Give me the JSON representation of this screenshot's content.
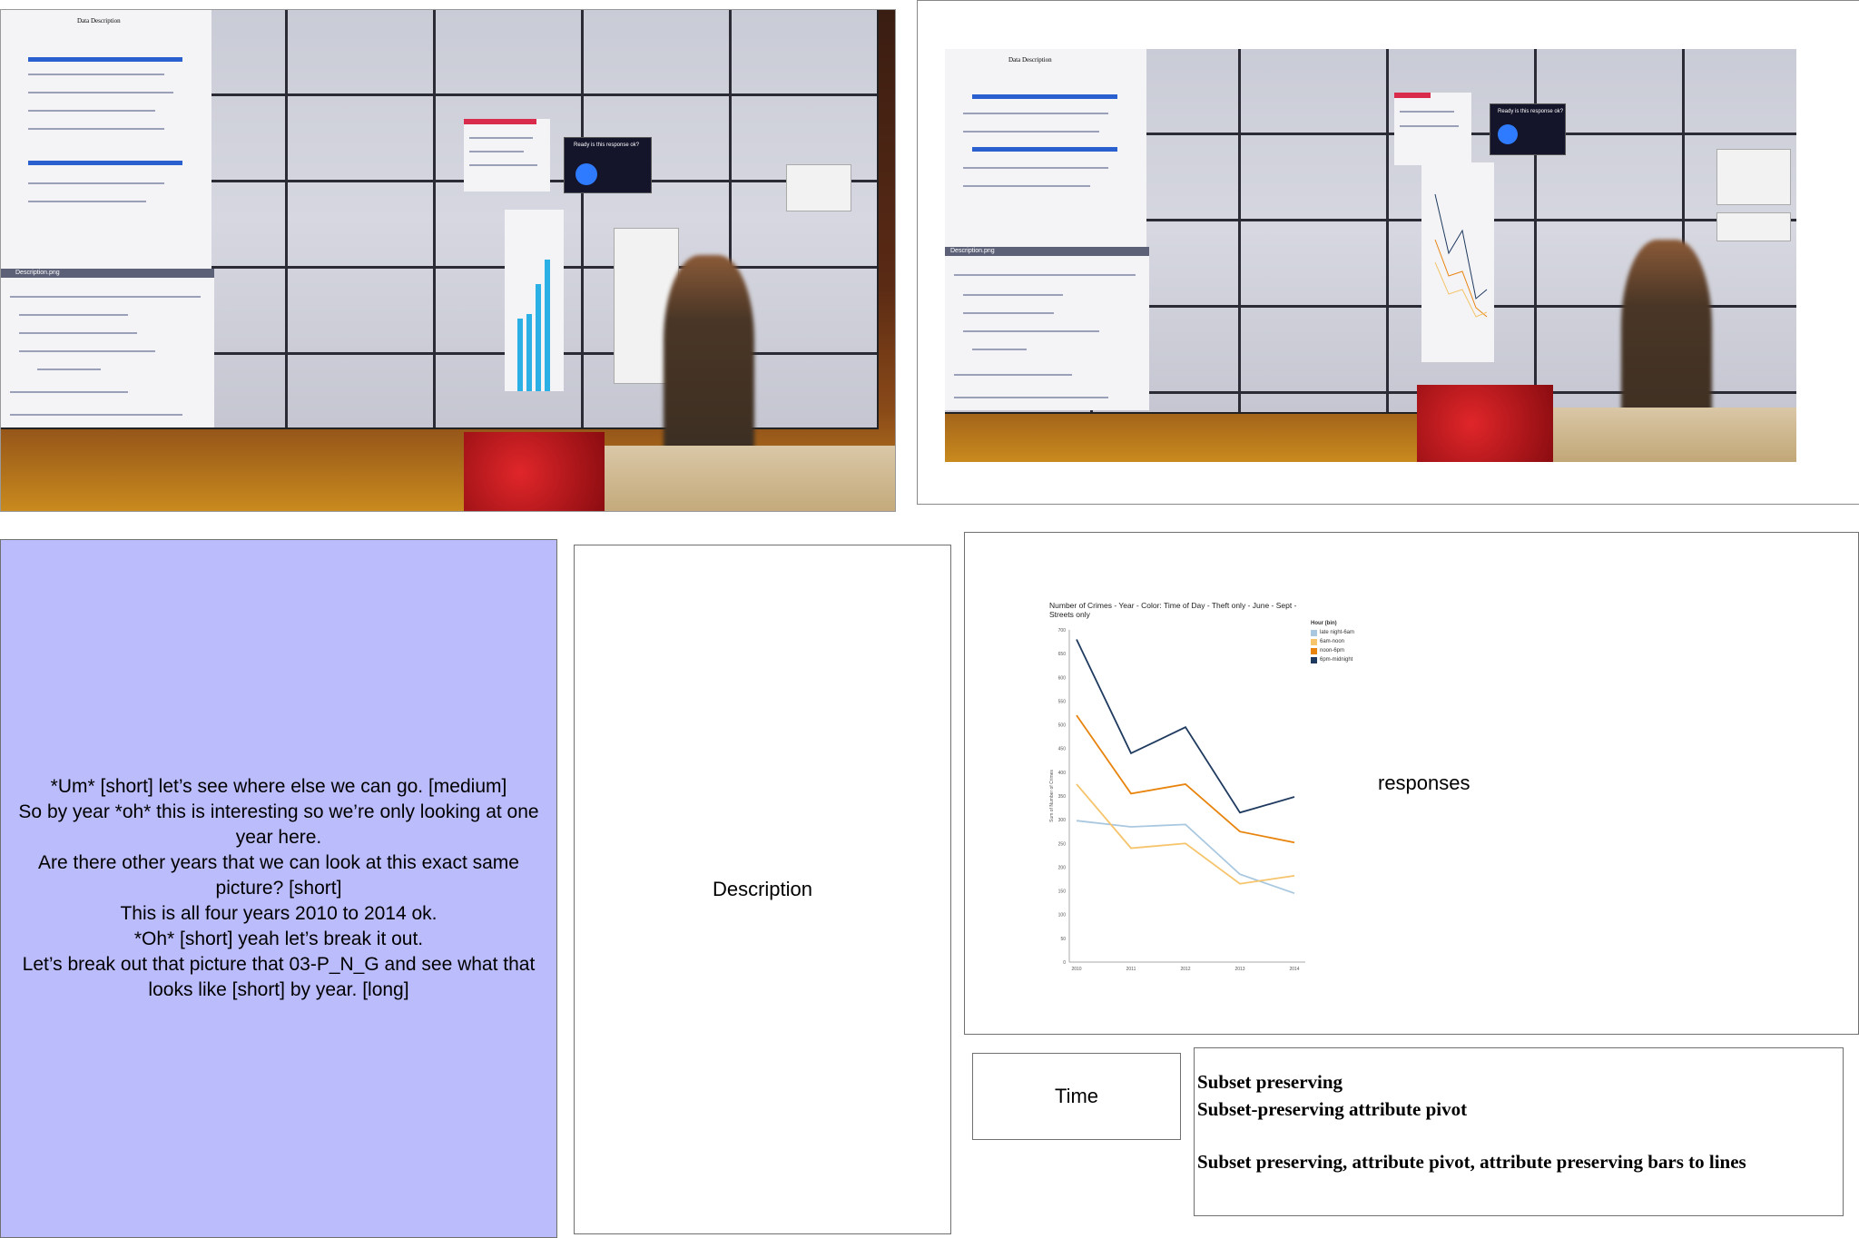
{
  "transcript": {
    "lines": [
      "*Um* [short] let’s see where else we can go. [medium]",
      "So by year *oh* this is interesting so we’re only looking at one year here.",
      "Are there other years that we can look at this exact same picture? [short]",
      "This is all four years 2010 to 2014 ok.",
      "*Oh* [short] yeah let’s break it out.",
      "Let’s break out that picture that 03-P_N_G and see what that looks like [short] by year. [long]"
    ]
  },
  "description_label": "Description",
  "responses_label": "responses",
  "time_label": "Time",
  "codes": [
    "Subset preserving",
    "Subset-preserving attribute pivot",
    "Subset preserving, attribute pivot, attribute preserving bars to lines"
  ],
  "photo1": {
    "window_title": "Description.png",
    "doc_title": "Data Description",
    "popup_text": "Ready is this response ok?"
  },
  "photo2": {
    "window_title": "Description.png",
    "doc_title": "Data Description",
    "popup_text": "Ready is this response ok?"
  },
  "chart_data": {
    "type": "line",
    "title": "Number of Crimes - Year - Color: Time of Day - Theft only - June - Sept - Streets only",
    "ylabel": "Sum of Number of Crimes",
    "x": [
      "2010",
      "2011",
      "2012",
      "2013",
      "2014"
    ],
    "ylim": [
      0,
      700
    ],
    "yticks": [
      0,
      50,
      100,
      150,
      200,
      250,
      300,
      350,
      400,
      450,
      500,
      550,
      600,
      650,
      700
    ],
    "legend_title": "Hour (bin)",
    "legend_position": "top-right",
    "series": [
      {
        "name": "late night-6am",
        "color": "#a9c8e0",
        "values": [
          298,
          285,
          290,
          185,
          145
        ]
      },
      {
        "name": "6am-noon",
        "color": "#f5c46b",
        "values": [
          375,
          240,
          250,
          165,
          182
        ]
      },
      {
        "name": "noon-6pm",
        "color": "#e8830c",
        "values": [
          520,
          355,
          375,
          275,
          252
        ]
      },
      {
        "name": "6pm-midnight",
        "color": "#1f3a5f",
        "values": [
          680,
          440,
          495,
          315,
          348
        ]
      }
    ]
  }
}
